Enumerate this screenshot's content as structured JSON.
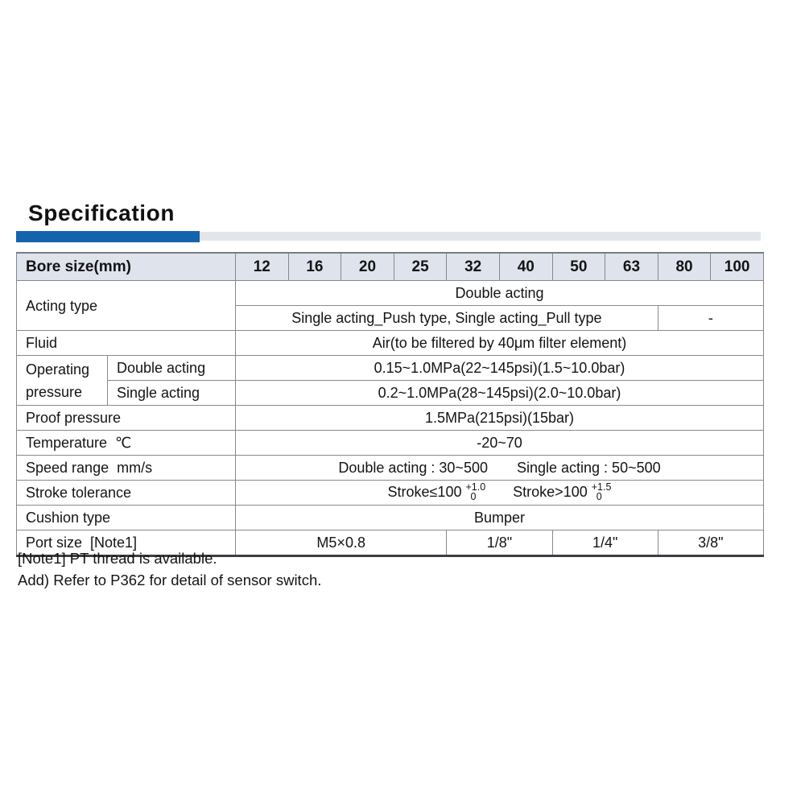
{
  "title": "Specification",
  "colors": {
    "accent_blue": "#1563ad",
    "accent_gray": "#e2e6eb",
    "header_bg": "#dee3ec"
  },
  "table": {
    "bore_label": "Bore size(mm)",
    "bore_sizes": [
      "12",
      "16",
      "20",
      "25",
      "32",
      "40",
      "50",
      "63",
      "80",
      "100"
    ],
    "acting_type": {
      "label": "Acting type",
      "double_value": "Double acting",
      "single_value": "Single acting_Push type,  Single acting_Pull type",
      "single_na": "-"
    },
    "fluid": {
      "label": "Fluid",
      "value": "Air(to be filtered by 40μm filter element)"
    },
    "operating_pressure": {
      "label": "Operating pressure",
      "double_label": "Double acting",
      "double_value": "0.15~1.0MPa(22~145psi)(1.5~10.0bar)",
      "single_label": "Single acting",
      "single_value": "0.2~1.0MPa(28~145psi)(2.0~10.0bar)"
    },
    "proof_pressure": {
      "label": "Proof pressure",
      "value": "1.5MPa(215psi)(15bar)"
    },
    "temperature": {
      "label": "Temperature  ℃",
      "value": "-20~70"
    },
    "speed_range": {
      "label": "Speed range  mm/s",
      "double_value": "Double acting : 30~500",
      "single_value": "Single acting : 50~500"
    },
    "stroke_tolerance": {
      "label": "Stroke tolerance",
      "le_text": "Stroke≤100",
      "le_tol_top": "+1.0",
      "le_tol_bottom": "0",
      "gt_text": "Stroke>100",
      "gt_tol_top": "+1.5",
      "gt_tol_bottom": "0"
    },
    "cushion": {
      "label": "Cushion type",
      "value": "Bumper"
    },
    "port_size": {
      "label": "Port size  [Note1]",
      "values": [
        "M5×0.8",
        "1/8\"",
        "1/4\"",
        "3/8\""
      ]
    }
  },
  "notes": {
    "note1": "[Note1] PT thread is available.",
    "note2": "Add) Refer to P362 for detail of sensor switch."
  }
}
